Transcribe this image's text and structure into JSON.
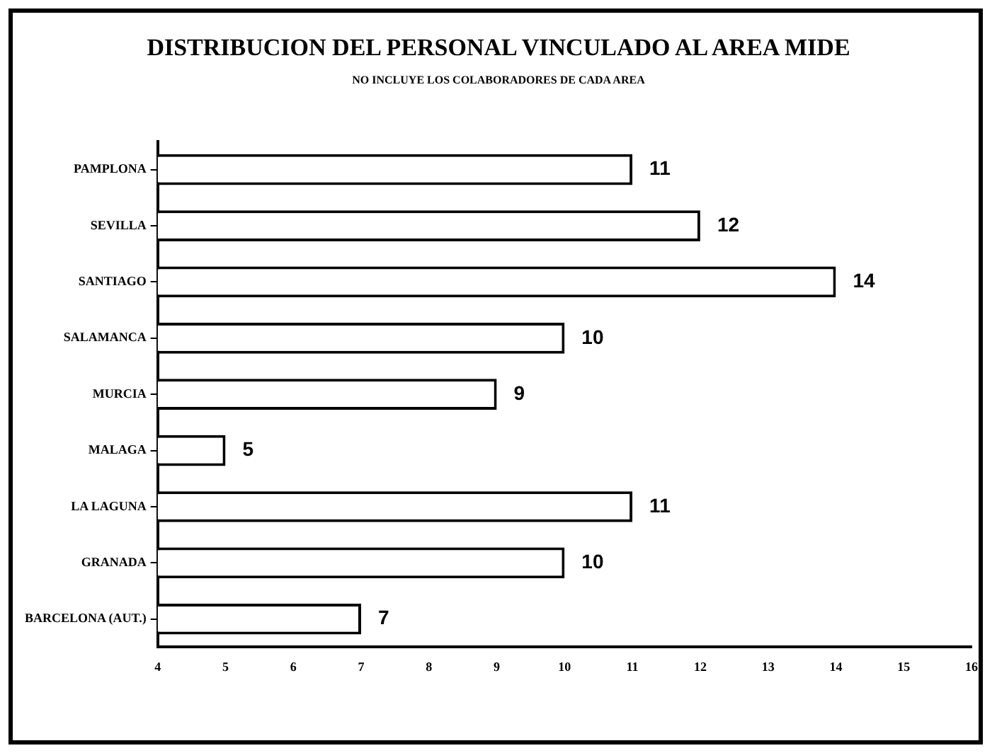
{
  "chart_data": {
    "type": "bar",
    "orientation": "horizontal",
    "title": "DISTRIBUCION DEL PERSONAL VINCULADO AL AREA MIDE",
    "subtitle": "NO INCLUYE LOS COLABORADORES DE CADA AREA",
    "categories": [
      "PAMPLONA",
      "SEVILLA",
      "SANTIAGO",
      "SALAMANCA",
      "MURCIA",
      "MALAGA",
      "LA LAGUNA",
      "GRANADA",
      "BARCELONA (AUT.)"
    ],
    "values": [
      11,
      12,
      14,
      10,
      9,
      5,
      11,
      10,
      7
    ],
    "color": "#ffffff",
    "xlim": [
      4,
      16
    ],
    "xticks": [
      4,
      5,
      6,
      7,
      8,
      9,
      10,
      11,
      12,
      13,
      14,
      15,
      16
    ],
    "grid": false,
    "legend": false,
    "data_labels": true
  }
}
